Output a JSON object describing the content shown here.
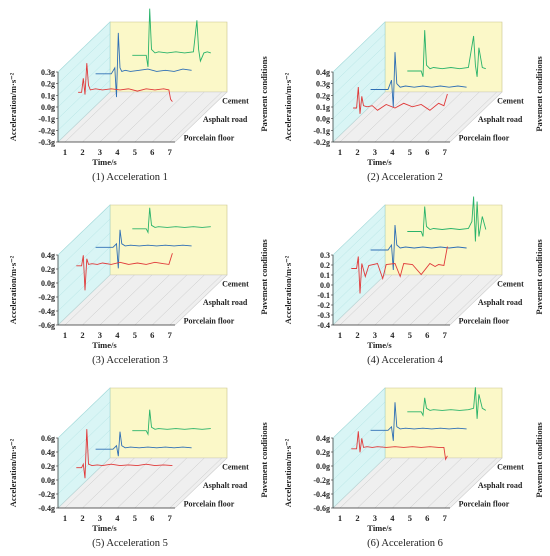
{
  "figure": {
    "background": "#ffffff",
    "colors": {
      "cement": "#2ab36a",
      "asphalt": "#2f6fb5",
      "porcelain": "#e03a3a",
      "back_wall": "#fbf8c8",
      "side_wall": "#d9f5f5",
      "floor": "#efefef",
      "grid": "#bcbcbc"
    }
  },
  "chart_data": [
    {
      "type": "line",
      "caption": "(1) Acceleration 1",
      "xlabel": "Time/s",
      "ylabel": "Acceleration/m·s⁻²",
      "zlabel": "Pavement conditions",
      "x_ticks": [
        "1",
        "2",
        "3",
        "4",
        "5",
        "6",
        "7"
      ],
      "y_ticks": [
        "-0.3g",
        "-0.2g",
        "-0.1g",
        "0.0g",
        "0.1g",
        "0.2g",
        "0.3g"
      ],
      "ylim": [
        -0.3,
        0.3
      ],
      "series": [
        {
          "name": "Porcelain floor",
          "x": [
            1.6,
            1.8,
            1.9,
            2.0,
            2.1,
            2.2,
            2.3,
            2.6,
            3.0,
            3.5,
            4.0,
            4.5,
            5.0,
            5.5,
            6.0,
            6.5,
            6.8,
            6.9,
            7.0
          ],
          "values": [
            0.0,
            0.0,
            0.12,
            -0.02,
            0.25,
            0.06,
            0.02,
            0.03,
            0.02,
            0.03,
            0.02,
            0.03,
            0.01,
            0.03,
            0.02,
            0.03,
            0.02,
            -0.06,
            -0.08
          ]
        },
        {
          "name": "Asphalt road",
          "x": [
            1.5,
            2.0,
            2.4,
            2.6,
            2.7,
            2.8,
            2.9,
            3.0,
            3.2,
            3.5,
            4.0,
            4.5,
            5.0,
            5.5,
            6.0,
            6.5,
            7.0
          ],
          "values": [
            0.0,
            0.0,
            0.0,
            0.05,
            -0.2,
            0.35,
            0.05,
            0.02,
            0.03,
            0.02,
            0.03,
            0.04,
            0.02,
            0.03,
            0.02,
            0.04,
            0.03
          ]
        },
        {
          "name": "Cement",
          "x": [
            2.5,
            3.0,
            3.3,
            3.4,
            3.5,
            3.6,
            3.8,
            4.0,
            4.5,
            5.0,
            5.5,
            6.0,
            6.2,
            6.3,
            6.4,
            6.6,
            6.8,
            7.0
          ],
          "values": [
            0.0,
            0.0,
            0.0,
            -0.1,
            0.4,
            0.05,
            0.02,
            0.03,
            0.02,
            0.03,
            0.02,
            0.03,
            0.3,
            0.05,
            -0.05,
            0.02,
            0.03,
            0.02
          ]
        }
      ]
    },
    {
      "type": "line",
      "caption": "(2) Acceleration 2",
      "xlabel": "Time/s",
      "ylabel": "Acceleration/m·s⁻²",
      "zlabel": "Pavement conditions",
      "x_ticks": [
        "1",
        "2",
        "3",
        "4",
        "5",
        "6",
        "7"
      ],
      "y_ticks": [
        "-0.2g",
        "-0.1g",
        "0.0g",
        "0.1g",
        "0.2g",
        "0.3g",
        "0.4g"
      ],
      "ylim": [
        -0.2,
        0.4
      ],
      "series": [
        {
          "name": "Porcelain floor",
          "x": [
            1.6,
            1.8,
            1.9,
            2.0,
            2.1,
            2.2,
            2.4,
            2.7,
            3.0,
            3.5,
            4.0,
            4.5,
            5.0,
            5.5,
            6.0,
            6.5,
            6.8,
            7.0
          ],
          "values": [
            0.0,
            0.0,
            0.18,
            -0.05,
            0.1,
            0.02,
            0.01,
            0.02,
            -0.02,
            0.03,
            0.0,
            0.04,
            0.01,
            0.03,
            -0.02,
            0.04,
            0.02,
            0.12
          ]
        },
        {
          "name": "Asphalt road",
          "x": [
            1.5,
            2.0,
            2.5,
            2.7,
            2.8,
            2.9,
            3.0,
            3.2,
            3.5,
            4.0,
            4.5,
            5.0,
            5.5,
            6.0,
            6.5,
            7.0
          ],
          "values": [
            0.0,
            0.0,
            0.0,
            0.08,
            -0.15,
            0.32,
            0.05,
            0.02,
            0.03,
            0.02,
            0.03,
            0.02,
            0.03,
            0.02,
            0.03,
            0.02
          ]
        },
        {
          "name": "Cement",
          "x": [
            2.5,
            3.0,
            3.3,
            3.4,
            3.5,
            3.6,
            3.8,
            4.0,
            4.5,
            5.0,
            5.5,
            6.0,
            6.3,
            6.4,
            6.5,
            6.6,
            6.8,
            7.0
          ],
          "values": [
            0.0,
            0.0,
            0.0,
            -0.05,
            0.35,
            0.05,
            0.02,
            0.03,
            0.02,
            0.03,
            0.02,
            0.03,
            0.3,
            0.05,
            -0.05,
            0.2,
            0.03,
            0.02
          ]
        }
      ]
    },
    {
      "type": "line",
      "caption": "(3) Acceleration 3",
      "xlabel": "Time/s",
      "ylabel": "Acceleration/m·s⁻²",
      "zlabel": "Pavement conditions",
      "x_ticks": [
        "1",
        "2",
        "3",
        "4",
        "5",
        "6",
        "7"
      ],
      "y_ticks": [
        "-0.6g",
        "-0.4g",
        "-0.2g",
        "0.0g",
        "0.2g",
        "0.4g"
      ],
      "ylim": [
        -0.6,
        0.4
      ],
      "series": [
        {
          "name": "Porcelain floor",
          "x": [
            1.5,
            1.8,
            1.9,
            2.0,
            2.1,
            2.2,
            2.4,
            2.7,
            3.0,
            3.5,
            4.0,
            4.5,
            5.0,
            5.5,
            6.0,
            6.5,
            6.8,
            7.0
          ],
          "values": [
            0.0,
            0.0,
            0.15,
            -0.35,
            0.1,
            0.02,
            0.03,
            0.02,
            0.04,
            0.02,
            0.05,
            0.02,
            0.04,
            0.02,
            0.05,
            0.03,
            0.02,
            0.18
          ]
        },
        {
          "name": "Asphalt road",
          "x": [
            1.5,
            2.0,
            2.5,
            2.7,
            2.8,
            2.9,
            3.0,
            3.2,
            3.5,
            4.0,
            4.5,
            5.0,
            5.5,
            6.0,
            6.5,
            7.0
          ],
          "values": [
            0.0,
            0.0,
            0.0,
            0.05,
            -0.3,
            0.25,
            0.05,
            0.02,
            0.03,
            0.02,
            0.03,
            0.02,
            0.03,
            0.02,
            0.03,
            0.02
          ]
        },
        {
          "name": "Cement",
          "x": [
            2.5,
            3.0,
            3.3,
            3.4,
            3.5,
            3.6,
            3.8,
            4.0,
            4.5,
            5.0,
            5.5,
            6.0,
            6.5,
            7.0
          ],
          "values": [
            0.0,
            0.0,
            0.0,
            -0.05,
            0.3,
            0.05,
            0.02,
            0.03,
            0.02,
            0.03,
            0.02,
            0.03,
            0.02,
            0.03
          ]
        }
      ]
    },
    {
      "type": "line",
      "caption": "(4) Acceleration 4",
      "xlabel": "Time/s",
      "ylabel": "Acceleration/m·s⁻²",
      "zlabel": "Pavement conditions",
      "x_ticks": [
        "1",
        "2",
        "3",
        "4",
        "5",
        "6",
        "7"
      ],
      "y_ticks": [
        "-0.4",
        "-0.3",
        "-0.2",
        "-0.1",
        "0.0",
        "0.1",
        "0.2",
        "0.3"
      ],
      "ylim": [
        -0.4,
        0.3
      ],
      "series": [
        {
          "name": "Porcelain floor",
          "x": [
            1.5,
            1.8,
            1.9,
            2.0,
            2.1,
            2.3,
            2.5,
            3.0,
            3.3,
            3.5,
            4.0,
            4.3,
            4.5,
            5.0,
            5.5,
            6.0,
            6.3,
            6.5,
            6.8,
            7.0
          ],
          "values": [
            0.0,
            0.0,
            0.12,
            -0.25,
            0.05,
            -0.08,
            0.03,
            0.05,
            -0.1,
            0.04,
            0.05,
            -0.08,
            0.05,
            0.04,
            -0.06,
            0.05,
            0.02,
            0.04,
            0.03,
            0.22
          ]
        },
        {
          "name": "Asphalt road",
          "x": [
            1.5,
            2.0,
            2.5,
            2.7,
            2.8,
            2.9,
            3.0,
            3.2,
            3.5,
            4.0,
            4.5,
            5.0,
            5.5,
            6.0,
            6.5,
            7.0
          ],
          "values": [
            0.0,
            0.0,
            0.0,
            0.05,
            -0.2,
            0.25,
            0.05,
            0.02,
            0.03,
            0.02,
            0.03,
            0.02,
            0.03,
            0.02,
            0.03,
            0.02
          ]
        },
        {
          "name": "Cement",
          "x": [
            2.5,
            3.0,
            3.3,
            3.4,
            3.5,
            3.6,
            3.8,
            4.0,
            4.5,
            5.0,
            5.5,
            6.0,
            6.2,
            6.3,
            6.4,
            6.5,
            6.6,
            6.8,
            7.0
          ],
          "values": [
            0.0,
            0.0,
            0.0,
            -0.05,
            0.25,
            0.05,
            0.02,
            0.03,
            0.02,
            0.03,
            0.02,
            0.03,
            0.1,
            0.35,
            -0.1,
            0.3,
            -0.05,
            0.15,
            0.02
          ]
        }
      ]
    },
    {
      "type": "line",
      "caption": "(5) Acceleration 5",
      "xlabel": "Time/s",
      "ylabel": "Acceleration/m·s⁻²",
      "zlabel": "Pavement conditions",
      "x_ticks": [
        "1",
        "2",
        "3",
        "4",
        "5",
        "6",
        "7"
      ],
      "y_ticks": [
        "-0.4g",
        "-0.2g",
        "0.0g",
        "0.2g",
        "0.4g",
        "0.6g"
      ],
      "ylim": [
        -0.4,
        0.6
      ],
      "series": [
        {
          "name": "Porcelain floor",
          "x": [
            1.5,
            1.8,
            1.9,
            2.0,
            2.1,
            2.2,
            2.4,
            2.7,
            3.0,
            3.5,
            4.0,
            4.5,
            5.0,
            5.5,
            6.0,
            6.5,
            7.0
          ],
          "values": [
            0.0,
            0.0,
            0.05,
            -0.15,
            0.55,
            0.05,
            0.03,
            0.04,
            0.03,
            0.05,
            0.03,
            0.04,
            0.03,
            0.05,
            0.03,
            0.04,
            0.03
          ]
        },
        {
          "name": "Asphalt road",
          "x": [
            1.5,
            2.0,
            2.5,
            2.7,
            2.8,
            2.9,
            3.0,
            3.2,
            3.5,
            4.0,
            4.5,
            5.0,
            5.5,
            6.0,
            6.5,
            7.0
          ],
          "values": [
            0.0,
            0.0,
            0.0,
            0.05,
            -0.1,
            0.25,
            0.05,
            0.02,
            0.03,
            0.02,
            0.03,
            0.02,
            0.03,
            0.02,
            0.03,
            0.02
          ]
        },
        {
          "name": "Cement",
          "x": [
            2.5,
            3.0,
            3.3,
            3.4,
            3.5,
            3.6,
            3.8,
            4.0,
            4.5,
            5.0,
            5.5,
            6.0,
            6.5,
            7.0
          ],
          "values": [
            0.0,
            0.0,
            0.0,
            -0.05,
            0.3,
            0.05,
            0.02,
            0.03,
            0.02,
            0.03,
            0.02,
            0.03,
            0.02,
            0.03
          ]
        }
      ]
    },
    {
      "type": "line",
      "caption": "(6) Acceleration 6",
      "xlabel": "Time/s",
      "ylabel": "Acceleration/m·s⁻²",
      "zlabel": "Pavement conditions",
      "x_ticks": [
        "1",
        "2",
        "3",
        "4",
        "5",
        "6",
        "7"
      ],
      "y_ticks": [
        "-0.6g",
        "-0.4g",
        "-0.2g",
        "0.0g",
        "0.2g",
        "0.4g"
      ],
      "ylim": [
        -0.6,
        0.4
      ],
      "series": [
        {
          "name": "Porcelain floor",
          "x": [
            1.5,
            1.8,
            1.9,
            2.0,
            2.1,
            2.2,
            2.4,
            2.7,
            3.0,
            3.5,
            4.0,
            4.5,
            5.0,
            5.5,
            6.0,
            6.5,
            6.8,
            6.9,
            7.0
          ],
          "values": [
            0.0,
            0.0,
            0.25,
            -0.05,
            0.15,
            0.02,
            0.03,
            0.02,
            0.03,
            0.02,
            0.03,
            0.02,
            0.03,
            0.02,
            0.03,
            0.02,
            0.02,
            -0.15,
            -0.1
          ]
        },
        {
          "name": "Asphalt road",
          "x": [
            1.5,
            2.0,
            2.5,
            2.7,
            2.8,
            2.9,
            3.0,
            3.2,
            3.5,
            4.0,
            4.5,
            5.0,
            5.5,
            6.0,
            6.5,
            7.0
          ],
          "values": [
            0.0,
            0.0,
            0.0,
            0.05,
            -0.15,
            0.4,
            0.05,
            0.02,
            0.03,
            0.02,
            0.03,
            0.02,
            0.03,
            0.02,
            0.03,
            0.02
          ]
        },
        {
          "name": "Cement",
          "x": [
            2.5,
            3.0,
            3.3,
            3.4,
            3.5,
            3.6,
            3.8,
            4.0,
            4.5,
            5.0,
            5.5,
            6.0,
            6.3,
            6.4,
            6.5,
            6.6,
            6.8,
            7.0
          ],
          "values": [
            0.0,
            0.0,
            0.0,
            -0.05,
            0.2,
            0.05,
            0.02,
            0.03,
            0.02,
            0.03,
            0.02,
            0.03,
            0.05,
            0.35,
            -0.1,
            0.25,
            0.05,
            0.02
          ]
        }
      ]
    }
  ]
}
